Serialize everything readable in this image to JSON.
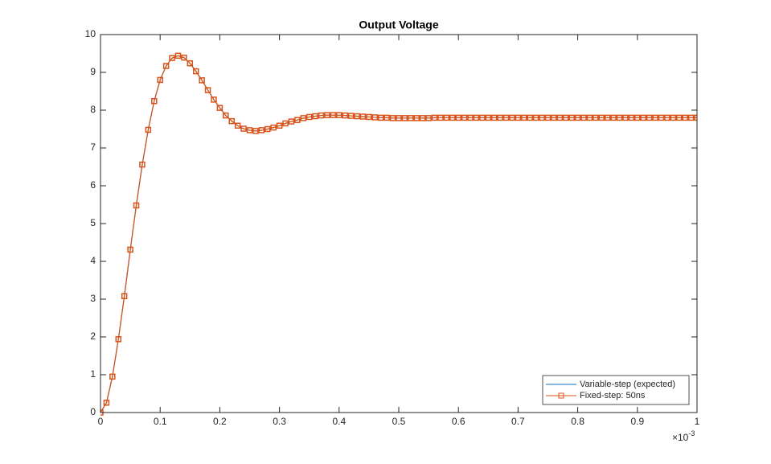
{
  "chart_data": {
    "type": "line",
    "title": "Output Voltage",
    "x": [
      0,
      0.01,
      0.02,
      0.03,
      0.04,
      0.05,
      0.06,
      0.07,
      0.08,
      0.09,
      0.1,
      0.11,
      0.12,
      0.13,
      0.14,
      0.15,
      0.16,
      0.17,
      0.18,
      0.19,
      0.2,
      0.21,
      0.22,
      0.23,
      0.24,
      0.25,
      0.26,
      0.27,
      0.28,
      0.29,
      0.3,
      0.31,
      0.32,
      0.33,
      0.34,
      0.35,
      0.36,
      0.37,
      0.38,
      0.39,
      0.4,
      0.41,
      0.42,
      0.43,
      0.44,
      0.45,
      0.46,
      0.47,
      0.48,
      0.49,
      0.5,
      0.51,
      0.52,
      0.53,
      0.54,
      0.55,
      0.56,
      0.57,
      0.58,
      0.59,
      0.6,
      0.61,
      0.62,
      0.63,
      0.64,
      0.65,
      0.66,
      0.67,
      0.68,
      0.69,
      0.7,
      0.71,
      0.72,
      0.73,
      0.74,
      0.75,
      0.76,
      0.77,
      0.78,
      0.79,
      0.8,
      0.81,
      0.82,
      0.83,
      0.84,
      0.85,
      0.86,
      0.87,
      0.88,
      0.89,
      0.9,
      0.91,
      0.92,
      0.93,
      0.94,
      0.95,
      0.96,
      0.97,
      0.98,
      0.99,
      1
    ],
    "series": [
      {
        "name": "Variable-step (expected)",
        "color": "#0072BD",
        "marker": "none",
        "values": [
          0,
          0.26,
          0.95,
          1.94,
          3.08,
          4.31,
          5.48,
          6.56,
          7.48,
          8.24,
          8.8,
          9.17,
          9.38,
          9.44,
          9.39,
          9.24,
          9.03,
          8.79,
          8.53,
          8.28,
          8.06,
          7.86,
          7.71,
          7.59,
          7.51,
          7.47,
          7.45,
          7.47,
          7.5,
          7.54,
          7.59,
          7.65,
          7.7,
          7.74,
          7.79,
          7.82,
          7.84,
          7.86,
          7.87,
          7.87,
          7.87,
          7.86,
          7.85,
          7.84,
          7.83,
          7.82,
          7.81,
          7.8,
          7.8,
          7.79,
          7.79,
          7.79,
          7.79,
          7.79,
          7.79,
          7.79,
          7.8,
          7.8,
          7.8,
          7.8,
          7.8,
          7.8,
          7.8,
          7.8,
          7.8,
          7.8,
          7.8,
          7.8,
          7.8,
          7.8,
          7.8,
          7.8,
          7.8,
          7.8,
          7.8,
          7.8,
          7.8,
          7.8,
          7.8,
          7.8,
          7.8,
          7.8,
          7.8,
          7.8,
          7.8,
          7.8,
          7.8,
          7.8,
          7.8,
          7.8,
          7.8,
          7.8,
          7.8,
          7.8,
          7.8,
          7.8,
          7.8,
          7.8,
          7.8,
          7.8,
          7.8
        ]
      },
      {
        "name": "Fixed-step: 50ns",
        "color": "#D95319",
        "marker": "square",
        "values": [
          0,
          0.26,
          0.95,
          1.94,
          3.08,
          4.31,
          5.48,
          6.56,
          7.48,
          8.24,
          8.8,
          9.17,
          9.38,
          9.44,
          9.39,
          9.24,
          9.03,
          8.79,
          8.53,
          8.28,
          8.06,
          7.86,
          7.71,
          7.59,
          7.51,
          7.47,
          7.45,
          7.47,
          7.5,
          7.54,
          7.59,
          7.65,
          7.7,
          7.74,
          7.79,
          7.82,
          7.84,
          7.86,
          7.87,
          7.87,
          7.87,
          7.86,
          7.85,
          7.84,
          7.83,
          7.82,
          7.81,
          7.8,
          7.8,
          7.79,
          7.79,
          7.79,
          7.79,
          7.79,
          7.79,
          7.79,
          7.8,
          7.8,
          7.8,
          7.8,
          7.8,
          7.8,
          7.8,
          7.8,
          7.8,
          7.8,
          7.8,
          7.8,
          7.8,
          7.8,
          7.8,
          7.8,
          7.8,
          7.8,
          7.8,
          7.8,
          7.8,
          7.8,
          7.8,
          7.8,
          7.8,
          7.8,
          7.8,
          7.8,
          7.8,
          7.8,
          7.8,
          7.8,
          7.8,
          7.8,
          7.8,
          7.8,
          7.8,
          7.8,
          7.8,
          7.8,
          7.8,
          7.8,
          7.8,
          7.8,
          7.8
        ]
      }
    ],
    "xlim": [
      0,
      1
    ],
    "xticks": [
      0,
      0.1,
      0.2,
      0.3,
      0.4,
      0.5,
      0.6,
      0.7,
      0.8,
      0.9,
      1
    ],
    "ylim": [
      0,
      10
    ],
    "yticks": [
      0,
      1,
      2,
      3,
      4,
      5,
      6,
      7,
      8,
      9,
      10
    ],
    "x_multiplier_base": "×10",
    "x_multiplier_power": "-3",
    "legend": "lower right",
    "grid": false
  }
}
